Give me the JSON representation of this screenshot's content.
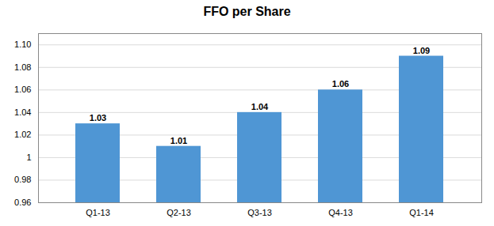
{
  "chart_data": {
    "type": "bar",
    "title": "FFO per Share",
    "categories": [
      "Q1-13",
      "Q2-13",
      "Q3-13",
      "Q4-13",
      "Q1-14"
    ],
    "values": [
      1.03,
      1.01,
      1.04,
      1.06,
      1.09
    ],
    "color": "#4f96d4",
    "ylim": [
      0.96,
      1.11
    ],
    "yticks": [
      0.96,
      0.98,
      1,
      1.02,
      1.04,
      1.06,
      1.08,
      {
        "value": 1.1,
        "label": "1.10"
      }
    ],
    "grid": true,
    "data_labels": true
  }
}
